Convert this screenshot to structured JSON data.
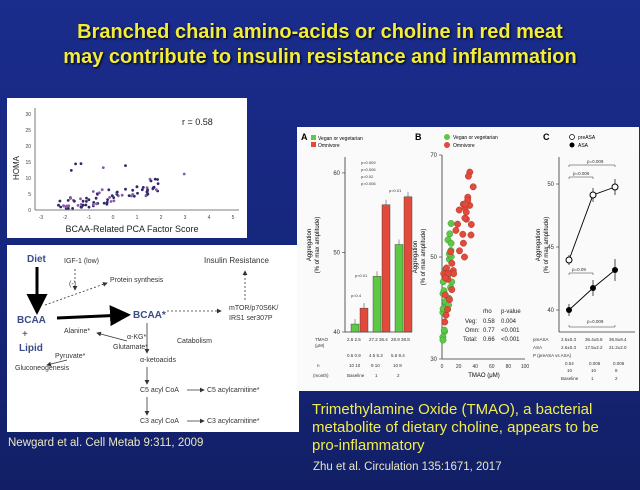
{
  "slide": {
    "title_line1": "Branched chain amino-acids or choline in red meat",
    "title_line2": "may contribute to insulin resistance and inflammation",
    "caption_lines": [
      "Trimethylamine Oxide (TMAO), a bacterial",
      "metabolite of dietary choline, appears to be",
      "pro-inflammatory"
    ],
    "citation_left": "Newgard et al. Cell Metab 9:311, 2009",
    "citation_right": "Zhu et al. Circulation 135:1671, 2017"
  },
  "colors": {
    "background": "#1a2c8c",
    "title": "#f3ec3a",
    "caption": "#f2ec4a",
    "vegan": "#5cc845",
    "omnivore": "#e24a3c"
  },
  "scatter": {
    "r_label": "r = 0.58",
    "ylabel": "HOMA",
    "xlabel": "BCAA-Related PCA Factor Score",
    "xticks": [
      "-3",
      "-2",
      "-1",
      "0",
      "1",
      "2",
      "3",
      "4",
      "5"
    ],
    "yticks": [
      "0",
      "5",
      "10",
      "15",
      "20",
      "25",
      "30"
    ]
  },
  "pathway": {
    "diet": "Diet",
    "igf": "IGF-1 (low)",
    "minus": "(-)",
    "protein_synthesis": "Protein synthesis",
    "insulin_resistance": "Insulin Resistance",
    "bcaa_left": "BCAA",
    "bcaa_right": "BCAA*",
    "plus": "+",
    "lipid": "Lipid",
    "mtor": "mTOR/p70S6K/",
    "irs": "IRS1 ser307P",
    "alanine": "Alanine*",
    "akg": "α-KG*",
    "glutamate": "Glutamate*",
    "pyruvate": "Pyruvate*",
    "catabolism": "Catabolism",
    "gluconeogenesis": "Gluconeogenesis",
    "ketoacids": "α-ketoacids",
    "c5coa": "C5 acyl CoA",
    "c5carn": "C5 acylcarnitine*",
    "c3coa": "C3 acyl CoA",
    "c3carn": "C3 acylcarnitine*"
  },
  "figure": {
    "A": {
      "label": "A",
      "legend": [
        "Vegan or vegetarian",
        "Omnivore"
      ],
      "ylabel1": "Aggregation",
      "ylabel2": "(% of max amplitude)",
      "yticks": [
        "40",
        "50",
        "60"
      ],
      "pvals": [
        "p<0.009",
        "p=0.006",
        "p=0.02",
        "p=0.006",
        "p=0.01",
        "p<0.01",
        "p=0.4"
      ],
      "row_tmao_label": "TMAO",
      "row_um": "(μM)",
      "row_n": "n",
      "row_months": "(month)",
      "tmao_values": [
        "2.6 2.5",
        "27.2 36.4",
        "28.9 38.8"
      ],
      "n_values": [
        "10 10",
        "9 10",
        "10 8"
      ],
      "months": [
        "Baseline",
        "1",
        "2"
      ],
      "sd_values": [
        "0.6 0.9",
        "4.5 5.3",
        "5.6 9.4"
      ],
      "bars": [
        {
          "vegan": 41,
          "omni": 43
        },
        {
          "vegan": 47,
          "omni": 56
        },
        {
          "vegan": 51,
          "omni": 57
        }
      ],
      "ylim": [
        40,
        62
      ]
    },
    "B": {
      "label": "B",
      "legend": [
        "Vegan or vegetarian",
        "Omnivore"
      ],
      "ylabel1": "Aggregation",
      "ylabel2": "(% of max amplitude)",
      "yticks": [
        "30",
        "50",
        "70"
      ],
      "xticks": [
        "0",
        "20",
        "40",
        "60",
        "80",
        "100"
      ],
      "xlabel": "TMAO (μM)",
      "stats_header": [
        "rho",
        "p-value"
      ],
      "stats": [
        {
          "group": "Veg:",
          "rho": "0.58",
          "p": "0.004"
        },
        {
          "group": "Omn:",
          "rho": "0.77",
          "p": "<0.001"
        },
        {
          "group": "Total:",
          "rho": "0.66",
          "p": "<0.001"
        }
      ]
    },
    "C": {
      "label": "C",
      "legend": [
        "preASA",
        "ASA"
      ],
      "ylabel1": "Aggregation",
      "ylabel2": "(% of max amplitude)",
      "yticks": [
        "40",
        "45",
        "50"
      ],
      "pvals_top": [
        "p=0.009",
        "p=0.006"
      ],
      "pvals_bottom": [
        "p=0.09",
        "p=0.009"
      ],
      "row_tmao": [
        "preASA",
        "ASA"
      ],
      "row_values_pre": [
        "2.5±0.3",
        "36.4±5.8",
        "36.8±9.4"
      ],
      "row_values_asa": [
        "2.6±0.3",
        "17.5±2.2",
        "21.2±2.0"
      ],
      "p_row_label": "P (preASA vs ASA)",
      "p_row": [
        "0.54",
        "0.006",
        "0.006"
      ],
      "n_values": [
        "10",
        "10",
        "8"
      ],
      "months": [
        "Baseline",
        "1",
        "2"
      ]
    }
  }
}
